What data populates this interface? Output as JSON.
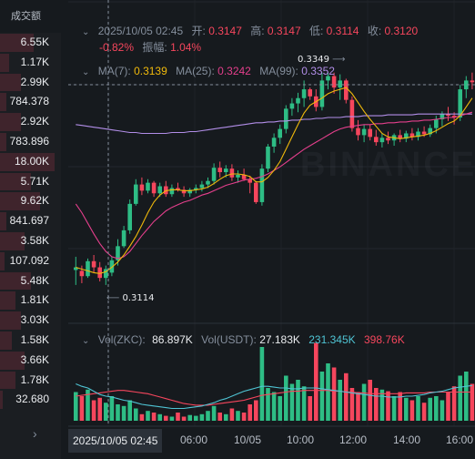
{
  "left_panel": {
    "header": "成交额",
    "values": [
      "6.55K",
      "1.17K",
      "2.99K",
      "784.378",
      "2.92K",
      "783.896",
      "18.00K",
      "5.71K",
      "9.62K",
      "841.697",
      "3.58K",
      "107.092",
      "5.48K",
      "1.81K",
      "3.03K",
      "1.58K",
      "3.66K",
      "1.78K",
      "32.680"
    ],
    "bar_fill": [
      0.55,
      0.15,
      0.35,
      0.1,
      0.35,
      0.1,
      0.9,
      0.5,
      0.65,
      0.1,
      0.4,
      0.08,
      0.5,
      0.25,
      0.35,
      0.2,
      0.4,
      0.25,
      0.05
    ]
  },
  "ohlc": {
    "datetime": "2025/10/05 02:45",
    "open_label": "开:",
    "open": "0.3147",
    "high_label": "高:",
    "high": "0.3147",
    "low_label": "低:",
    "low": "0.3114",
    "close_label": "收:",
    "close": "0.3120",
    "change": "-0.82%",
    "amplitude_label": "振幅:",
    "amplitude": "1.04%"
  },
  "ma": {
    "ma7_label": "MA(7):",
    "ma7": "0.3139",
    "ma25_label": "MA(25):",
    "ma25": "0.3242",
    "ma99_label": "MA(99):",
    "ma99": "0.3352"
  },
  "vol": {
    "zkc_label": "Vol(ZKC):",
    "zkc": "86.897K",
    "usdt_label": "Vol(USDT):",
    "usdt": "27.183K",
    "ma1": "231.345K",
    "ma2": "398.76K"
  },
  "annotations": {
    "high_tag": "0.3349",
    "low_tag": "0.3114"
  },
  "time_axis": {
    "cursor": "2025/10/05 02:45",
    "labels": [
      "06:00",
      "10/05",
      "10:00",
      "12:00",
      "14:00",
      "16:00"
    ]
  },
  "watermark": "BINANCE",
  "colors": {
    "up": "#2ebd85",
    "down": "#f6465d",
    "ma7": "#f0b90b",
    "ma25": "#e43f8c",
    "ma99": "#b28ee8",
    "vol_ma1": "#4fc4d4",
    "vol_ma2": "#f6465d"
  },
  "chart_data": {
    "type": "candlestick",
    "y_range": [
      0.308,
      0.339
    ],
    "candles": [
      [
        0.3125,
        0.314,
        0.3108,
        0.3128
      ],
      [
        0.3124,
        0.313,
        0.311,
        0.3118
      ],
      [
        0.3118,
        0.3138,
        0.3116,
        0.3135
      ],
      [
        0.3135,
        0.3142,
        0.3122,
        0.3128
      ],
      [
        0.3128,
        0.3134,
        0.3112,
        0.3116
      ],
      [
        0.3116,
        0.313,
        0.3108,
        0.3126
      ],
      [
        0.3122,
        0.314,
        0.3118,
        0.3136
      ],
      [
        0.3136,
        0.316,
        0.313,
        0.3152
      ],
      [
        0.3152,
        0.3175,
        0.315,
        0.317
      ],
      [
        0.317,
        0.3205,
        0.3166,
        0.32
      ],
      [
        0.32,
        0.3228,
        0.3198,
        0.3222
      ],
      [
        0.3222,
        0.323,
        0.321,
        0.3215
      ],
      [
        0.3215,
        0.3228,
        0.3212,
        0.3224
      ],
      [
        0.3224,
        0.3226,
        0.3208,
        0.3212
      ],
      [
        0.3212,
        0.3224,
        0.3208,
        0.322
      ],
      [
        0.322,
        0.3226,
        0.3208,
        0.3211
      ],
      [
        0.3211,
        0.3222,
        0.3208,
        0.3218
      ],
      [
        0.3218,
        0.3224,
        0.3214,
        0.3216
      ],
      [
        0.3216,
        0.322,
        0.3208,
        0.3212
      ],
      [
        0.3212,
        0.3218,
        0.3208,
        0.3216
      ],
      [
        0.3216,
        0.3222,
        0.3212,
        0.3218
      ],
      [
        0.3218,
        0.3226,
        0.3214,
        0.3222
      ],
      [
        0.3222,
        0.323,
        0.3218,
        0.3226
      ],
      [
        0.3226,
        0.3246,
        0.3222,
        0.3241
      ],
      [
        0.3241,
        0.3248,
        0.323,
        0.3236
      ],
      [
        0.3236,
        0.3244,
        0.323,
        0.324
      ],
      [
        0.324,
        0.3245,
        0.3226,
        0.323
      ],
      [
        0.323,
        0.3238,
        0.3224,
        0.3233
      ],
      [
        0.3233,
        0.324,
        0.3226,
        0.3228
      ],
      [
        0.3228,
        0.3232,
        0.3212,
        0.3224
      ],
      [
        0.3224,
        0.3226,
        0.32,
        0.3202
      ],
      [
        0.3202,
        0.3245,
        0.3198,
        0.324
      ],
      [
        0.324,
        0.3268,
        0.3236,
        0.3265
      ],
      [
        0.3265,
        0.328,
        0.3258,
        0.3275
      ],
      [
        0.3275,
        0.329,
        0.3268,
        0.3285
      ],
      [
        0.3285,
        0.3312,
        0.328,
        0.3308
      ],
      [
        0.3308,
        0.332,
        0.33,
        0.3314
      ],
      [
        0.3314,
        0.3326,
        0.3304,
        0.332
      ],
      [
        0.332,
        0.334,
        0.331,
        0.333
      ],
      [
        0.333,
        0.3332,
        0.3318,
        0.3322
      ],
      [
        0.3322,
        0.333,
        0.3305,
        0.331
      ],
      [
        0.331,
        0.3349,
        0.3306,
        0.334
      ],
      [
        0.334,
        0.3349,
        0.333,
        0.3345
      ],
      [
        0.3345,
        0.3349,
        0.3325,
        0.3332
      ],
      [
        0.3332,
        0.3347,
        0.3318,
        0.334
      ],
      [
        0.334,
        0.3342,
        0.3314,
        0.3318
      ],
      [
        0.3318,
        0.3322,
        0.3282,
        0.3286
      ],
      [
        0.3286,
        0.3295,
        0.3272,
        0.3278
      ],
      [
        0.3278,
        0.329,
        0.327,
        0.3285
      ],
      [
        0.3285,
        0.329,
        0.3272,
        0.3276
      ],
      [
        0.3276,
        0.3284,
        0.3266,
        0.327
      ],
      [
        0.327,
        0.328,
        0.3264,
        0.3275
      ],
      [
        0.3275,
        0.3282,
        0.3268,
        0.3272
      ],
      [
        0.3272,
        0.328,
        0.3266,
        0.3278
      ],
      [
        0.3278,
        0.3284,
        0.327,
        0.3274
      ],
      [
        0.3274,
        0.3283,
        0.327,
        0.328
      ],
      [
        0.328,
        0.3286,
        0.3272,
        0.3276
      ],
      [
        0.3276,
        0.3286,
        0.3272,
        0.3282
      ],
      [
        0.3282,
        0.3288,
        0.3276,
        0.3279
      ],
      [
        0.3279,
        0.329,
        0.3276,
        0.3286
      ],
      [
        0.3286,
        0.33,
        0.328,
        0.3296
      ],
      [
        0.3296,
        0.3305,
        0.3288,
        0.3302
      ],
      [
        0.3302,
        0.331,
        0.3294,
        0.33
      ],
      [
        0.33,
        0.3304,
        0.329,
        0.3298
      ],
      [
        0.3298,
        0.3335,
        0.3294,
        0.333
      ],
      [
        0.333,
        0.3345,
        0.332,
        0.334
      ],
      [
        0.334,
        0.3349,
        0.333,
        0.3338
      ]
    ],
    "ma7": [
      0.3128,
      0.3126,
      0.3124,
      0.3122,
      0.3121,
      0.3123,
      0.3128,
      0.3134,
      0.3142,
      0.3152,
      0.3163,
      0.3176,
      0.319,
      0.3202,
      0.321,
      0.3215,
      0.3216,
      0.3216,
      0.3215,
      0.3215,
      0.3216,
      0.3217,
      0.3219,
      0.3223,
      0.3228,
      0.3232,
      0.3234,
      0.3234,
      0.3233,
      0.3231,
      0.3225,
      0.3225,
      0.323,
      0.3238,
      0.3248,
      0.3262,
      0.3276,
      0.329,
      0.3303,
      0.3312,
      0.3316,
      0.332,
      0.3325,
      0.3328,
      0.333,
      0.3332,
      0.3325,
      0.3315,
      0.3305,
      0.3296,
      0.3288,
      0.328,
      0.3276,
      0.3275,
      0.3274,
      0.3275,
      0.3276,
      0.3277,
      0.3278,
      0.328,
      0.3283,
      0.3287,
      0.3291,
      0.3294,
      0.33,
      0.331,
      0.332
    ],
    "ma25": [
      0.32,
      0.319,
      0.3178,
      0.3166,
      0.3155,
      0.3146,
      0.314,
      0.3138,
      0.314,
      0.3146,
      0.3155,
      0.3164,
      0.3172,
      0.318,
      0.3186,
      0.3192,
      0.3196,
      0.3199,
      0.3202,
      0.3204,
      0.3207,
      0.321,
      0.3212,
      0.3215,
      0.3218,
      0.3221,
      0.3223,
      0.3225,
      0.3227,
      0.3228,
      0.3229,
      0.3231,
      0.3234,
      0.3238,
      0.3242,
      0.3247,
      0.3252,
      0.3257,
      0.3262,
      0.3266,
      0.327,
      0.3274,
      0.3278,
      0.3282,
      0.3285,
      0.3287,
      0.3288,
      0.3289,
      0.329,
      0.329,
      0.3291,
      0.3291,
      0.3292,
      0.3292,
      0.3293,
      0.3293,
      0.3294,
      0.3294,
      0.3295,
      0.3295,
      0.3296,
      0.3297,
      0.3298,
      0.3298,
      0.33,
      0.3302,
      0.3304
    ],
    "ma99": [
      0.329,
      0.3289,
      0.3288,
      0.3287,
      0.3286,
      0.3285,
      0.3284,
      0.3283,
      0.3282,
      0.3281,
      0.3281,
      0.328,
      0.328,
      0.328,
      0.328,
      0.328,
      0.3281,
      0.3281,
      0.3281,
      0.3282,
      0.3282,
      0.3283,
      0.3284,
      0.3285,
      0.3286,
      0.3287,
      0.3288,
      0.3289,
      0.329,
      0.3291,
      0.3292,
      0.3292,
      0.3293,
      0.3293,
      0.3294,
      0.3294,
      0.3295,
      0.3295,
      0.3296,
      0.3296,
      0.3297,
      0.3297,
      0.3298,
      0.3298,
      0.3298,
      0.3299,
      0.3299,
      0.3299,
      0.33,
      0.33,
      0.33,
      0.33,
      0.3301,
      0.3301,
      0.3301,
      0.3301,
      0.3301,
      0.3302,
      0.3302,
      0.3302,
      0.3302,
      0.3302,
      0.3302,
      0.3302,
      0.3302,
      0.3302,
      0.3302
    ],
    "volume": [
      0.35,
      0.3,
      0.38,
      0.25,
      0.28,
      0.22,
      0.3,
      0.2,
      0.18,
      0.25,
      0.15,
      0.08,
      0.12,
      0.1,
      0.08,
      0.06,
      0.05,
      0.1,
      0.05,
      0.07,
      0.06,
      0.08,
      0.12,
      0.18,
      0.1,
      0.08,
      0.15,
      0.12,
      0.1,
      0.2,
      0.25,
      0.9,
      0.4,
      0.35,
      0.3,
      0.55,
      0.45,
      0.5,
      0.42,
      0.3,
      0.95,
      0.6,
      0.7,
      0.65,
      0.5,
      0.58,
      0.4,
      0.35,
      0.45,
      0.5,
      0.4,
      0.38,
      0.36,
      0.3,
      0.35,
      0.28,
      0.25,
      0.3,
      0.22,
      0.28,
      0.3,
      0.25,
      0.35,
      0.42,
      0.55,
      0.6,
      0.45
    ],
    "vol_ma1": [
      0.45,
      0.42,
      0.4,
      0.36,
      0.32,
      0.3,
      0.29,
      0.27,
      0.25,
      0.24,
      0.22,
      0.2,
      0.19,
      0.18,
      0.17,
      0.16,
      0.15,
      0.15,
      0.15,
      0.16,
      0.17,
      0.18,
      0.2,
      0.22,
      0.25,
      0.27,
      0.3,
      0.33,
      0.36,
      0.38,
      0.4,
      0.42,
      0.42,
      0.41,
      0.4,
      0.4,
      0.39,
      0.39,
      0.4,
      0.4,
      0.4,
      0.39,
      0.38,
      0.37,
      0.36,
      0.35,
      0.34,
      0.33,
      0.32,
      0.31,
      0.3,
      0.3,
      0.29,
      0.29,
      0.29,
      0.3,
      0.3,
      0.31,
      0.32,
      0.34,
      0.35,
      0.36,
      0.38,
      0.4,
      0.41,
      0.42,
      0.43
    ],
    "vol_ma2": [
      0.3,
      0.31,
      0.32,
      0.33,
      0.34,
      0.35,
      0.36,
      0.37,
      0.37,
      0.36,
      0.35,
      0.34,
      0.33,
      0.31,
      0.29,
      0.27,
      0.25,
      0.23,
      0.21,
      0.2,
      0.19,
      0.19,
      0.19,
      0.2,
      0.21,
      0.22,
      0.23,
      0.24,
      0.25,
      0.27,
      0.29,
      0.31,
      0.32,
      0.33,
      0.34,
      0.35,
      0.36,
      0.36,
      0.37,
      0.37,
      0.37,
      0.37,
      0.37,
      0.36,
      0.36,
      0.35,
      0.35,
      0.34,
      0.34,
      0.33,
      0.33,
      0.33,
      0.33,
      0.33,
      0.33,
      0.34,
      0.34,
      0.34,
      0.34,
      0.35,
      0.35,
      0.35,
      0.35,
      0.35,
      0.35,
      0.35,
      0.35
    ]
  }
}
